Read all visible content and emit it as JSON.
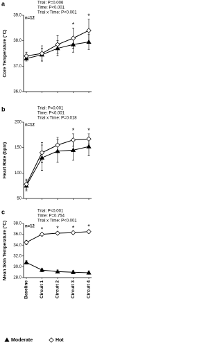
{
  "chart_data": [
    {
      "type": "line",
      "panel": "a",
      "y_label": "Core Temperature (°C)",
      "n_label": "n=12",
      "stats": [
        "Trial: P=0.006",
        "Time: P<0.001",
        "Trial x Time: P<0.001"
      ],
      "categories": [
        "Baseline",
        "Circuit 1",
        "Circuit 2",
        "Circuit 3",
        "Circuit 4"
      ],
      "significance": [
        null,
        null,
        null,
        "*",
        "*"
      ],
      "ylim": [
        36,
        39
      ],
      "yticks": [
        {
          "value": 36,
          "label": "36.0"
        },
        {
          "value": 37,
          "label": "37.0"
        },
        {
          "value": 38,
          "label": "38.0"
        },
        {
          "value": 39,
          "label": "39.0"
        }
      ],
      "series": [
        {
          "name": "Moderate",
          "color": "#000000",
          "fill": "#000000",
          "marker": "triangle",
          "values": [
            37.3,
            37.45,
            37.7,
            37.85,
            37.95
          ],
          "errors": [
            0.1,
            0.25,
            0.3,
            0.3,
            0.3
          ]
        },
        {
          "name": "Hot",
          "color": "#000000",
          "fill": "#ffffff",
          "marker": "diamond",
          "values": [
            37.4,
            37.5,
            37.85,
            38.1,
            38.4
          ],
          "errors": [
            0.15,
            0.3,
            0.35,
            0.4,
            0.45
          ]
        }
      ]
    },
    {
      "type": "line",
      "panel": "b",
      "y_label": "Heart Rate (bpm)",
      "n_label": "n=12",
      "stats": [
        "Trial: P=0.001",
        "Time: P<0.001",
        "Trial x Time: P=0.018"
      ],
      "categories": [
        "Baseline",
        "Circuit 1",
        "Circuit 2",
        "Circuit 3",
        "Circuit 4"
      ],
      "significance": [
        null,
        null,
        null,
        "*",
        "*"
      ],
      "ylim": [
        50,
        200
      ],
      "yticks": [
        50,
        100,
        150,
        200
      ],
      "series": [
        {
          "name": "Moderate",
          "color": "#000000",
          "fill": "#000000",
          "marker": "triangle",
          "values": [
            75,
            130,
            143,
            145,
            152
          ],
          "errors": [
            10,
            25,
            22,
            20,
            18
          ]
        },
        {
          "name": "Hot",
          "color": "#000000",
          "fill": "#ffffff",
          "marker": "diamond",
          "values": [
            78,
            140,
            155,
            165,
            167
          ],
          "errors": [
            10,
            20,
            15,
            12,
            10
          ]
        }
      ]
    },
    {
      "type": "line",
      "panel": "c",
      "y_label": "Mean Skin Temperature (°C)",
      "n_label": "n=12",
      "stats": [
        "Trial: P<0.001",
        "Time: P=0.754",
        "Trial x Time: P<0.001"
      ],
      "categories": [
        "Baseline",
        "Circuit 1",
        "Circuit 2",
        "Circuit 3",
        "Circuit 4"
      ],
      "significance": [
        null,
        "*",
        "*",
        "*",
        "*"
      ],
      "ylim": [
        28,
        38
      ],
      "yticks": [
        {
          "value": 28,
          "label": "28.0"
        },
        {
          "value": 30,
          "label": "30.0"
        },
        {
          "value": 32,
          "label": "32.0"
        },
        {
          "value": 34,
          "label": "34.0"
        },
        {
          "value": 36,
          "label": "36.0"
        },
        {
          "value": 38,
          "label": "38.0"
        }
      ],
      "series": [
        {
          "name": "Moderate",
          "color": "#000000",
          "fill": "#000000",
          "marker": "triangle",
          "values": [
            30.8,
            29.4,
            29.1,
            29.0,
            28.9
          ],
          "errors": [
            0.3,
            0.3,
            0.3,
            0.3,
            0.3
          ]
        },
        {
          "name": "Hot",
          "color": "#000000",
          "fill": "#ffffff",
          "marker": "diamond",
          "values": [
            34.5,
            36.0,
            36.2,
            36.3,
            36.5
          ],
          "errors": [
            0.4,
            0.3,
            0.3,
            0.3,
            0.3
          ]
        }
      ]
    }
  ]
}
